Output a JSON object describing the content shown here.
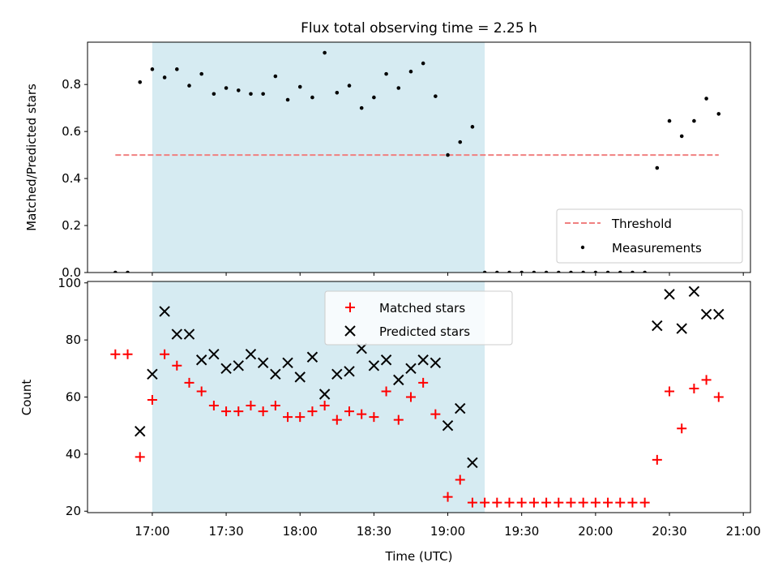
{
  "chart_data": [
    {
      "type": "scatter",
      "title": "Flux total observing time = 2.25 h",
      "ylabel": "Matched/Predicted stars",
      "xlabel": "",
      "ylim": [
        0,
        0.98
      ],
      "yticks": [
        0.0,
        0.2,
        0.4,
        0.6,
        0.8
      ],
      "ytick_labels": [
        "0.0",
        "0.2",
        "0.4",
        "0.6",
        "0.8"
      ],
      "highlight_span": {
        "start": "17:00",
        "end": "19:15"
      },
      "threshold": {
        "name": "Threshold",
        "value": 0.5,
        "color": "#f08080"
      },
      "series": [
        {
          "name": "Measurements",
          "color": "#000000",
          "marker": "dot",
          "values": [
            0,
            0,
            0.81,
            0.865,
            0.83,
            0.865,
            0.795,
            0.845,
            0.76,
            0.785,
            0.775,
            0.76,
            0.76,
            0.835,
            0.735,
            0.79,
            0.745,
            0.935,
            0.765,
            0.795,
            0.7,
            0.745,
            0.845,
            0.785,
            0.855,
            0.89,
            0.75,
            0.5,
            0.555,
            0.62,
            0,
            0,
            0,
            0,
            0,
            0,
            0,
            0,
            0,
            0,
            0,
            0,
            0,
            0,
            0.445,
            0.645,
            0.58,
            0.645,
            0.74,
            0.675
          ]
        }
      ],
      "legend": {
        "position": "lower-right",
        "entries": [
          "Threshold",
          "Measurements"
        ]
      }
    },
    {
      "type": "scatter",
      "title": "",
      "ylabel": "Count",
      "xlabel": "Time (UTC)",
      "ylim": [
        19.5,
        100.5
      ],
      "yticks": [
        20,
        40,
        60,
        80,
        100
      ],
      "ytick_labels": [
        "20",
        "40",
        "60",
        "80",
        "100"
      ],
      "highlight_span": {
        "start": "17:00",
        "end": "19:15"
      },
      "series": [
        {
          "name": "Matched stars",
          "color": "#ff0000",
          "marker": "plus",
          "values": [
            75,
            75,
            39,
            59,
            75,
            71,
            65,
            62,
            57,
            55,
            55,
            57,
            55,
            57,
            53,
            53,
            55,
            57,
            52,
            55,
            54,
            53,
            62,
            52,
            60,
            65,
            54,
            25,
            31,
            23,
            23,
            23,
            23,
            23,
            23,
            23,
            23,
            23,
            23,
            23,
            23,
            23,
            23,
            23,
            38,
            62,
            49,
            63,
            66,
            60
          ]
        },
        {
          "name": "Predicted stars",
          "color": "#000000",
          "marker": "x",
          "values": [
            null,
            null,
            48,
            68,
            90,
            82,
            82,
            73,
            75,
            70,
            71,
            75,
            72,
            68,
            72,
            67,
            74,
            61,
            68,
            69,
            77,
            71,
            73,
            66,
            70,
            73,
            72,
            50,
            56,
            37,
            null,
            null,
            null,
            null,
            null,
            null,
            null,
            null,
            null,
            null,
            null,
            null,
            null,
            null,
            85,
            96,
            84,
            97,
            89,
            89
          ]
        }
      ],
      "legend": {
        "position": "top-center",
        "entries": [
          "Matched stars",
          "Predicted stars"
        ]
      }
    }
  ],
  "time_axis": {
    "start_minutes": 1005,
    "step_minutes": 5,
    "range_minutes": [
      993.7,
      1262.9
    ],
    "ticks": [
      "17:00",
      "17:30",
      "18:00",
      "18:30",
      "19:00",
      "19:30",
      "20:00",
      "20:30",
      "21:00"
    ]
  }
}
